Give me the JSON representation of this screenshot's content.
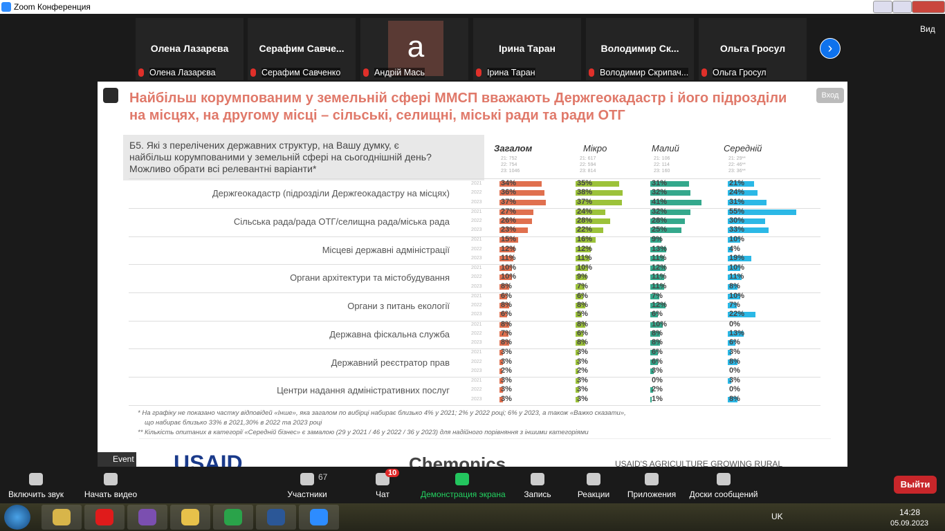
{
  "window": {
    "title": "Zoom Конференция"
  },
  "view_button": "Вид",
  "participants": [
    {
      "name": "Олена Лазарєва",
      "label": "Олена Лазарєва"
    },
    {
      "name": "Серафим  Савче...",
      "label": "Серафим Савченко"
    },
    {
      "avatar": "а",
      "label": "Андрій Мась"
    },
    {
      "name": "Ірина Таран",
      "label": "Ірина Таран"
    },
    {
      "name": "Володимир  Ск...",
      "label": "Володимир Скрипач..."
    },
    {
      "name": "Ольга Гросул",
      "label": "Ольга Гросул"
    }
  ],
  "slide": {
    "title": [
      "Найбільш корумпованим у земельній сфері ММСП вважають Держгеокадастр і його підрозділи",
      "на місцях, на другому місці – сільські, селищні, міські ради та ради ОТГ"
    ],
    "question": [
      "Б5. Які з перелічених державних структур, на Вашу думку, є",
      "найбільш корумпованими у земельній сфері на сьогоднішній день?",
      "Можливо обрати всі релевантні варіанти*"
    ],
    "groups": [
      {
        "name": "Загалом",
        "color": "#e0704f",
        "sizes": [
          "21: 752",
          "22: 754",
          "23: 1046"
        ]
      },
      {
        "name": "Мікро",
        "color": "#9cc23a",
        "sizes": [
          "21: 617",
          "22: 594",
          "23: 814"
        ]
      },
      {
        "name": "Малий",
        "color": "#34a88c",
        "sizes": [
          "21: 106",
          "22: 114",
          "23: 160"
        ]
      },
      {
        "name": "Середній",
        "color": "#2bb8e6",
        "sizes": [
          "21: 29**",
          "22: 46**",
          "23: 36**"
        ]
      }
    ],
    "years": [
      "2021",
      "2022",
      "2023"
    ],
    "rows": [
      {
        "label": "Держгеокадастр (підрозділи Держгеокадастру на місцях)",
        "values": [
          [
            34,
            35,
            31,
            21
          ],
          [
            36,
            38,
            32,
            24
          ],
          [
            37,
            37,
            41,
            31
          ]
        ],
        "value_labels": [
          [
            "34%",
            "35%",
            "31%",
            "21%"
          ],
          [
            "36%",
            "38%",
            "32%",
            "24%"
          ],
          [
            "37%",
            "37%",
            "41%",
            "31%"
          ]
        ]
      },
      {
        "label": "Сільська рада/рада ОТГ/селищна рада/міська рада",
        "values": [
          [
            27,
            24,
            32,
            55
          ],
          [
            26,
            28,
            28,
            30
          ],
          [
            23,
            22,
            25,
            33
          ]
        ],
        "value_labels": [
          [
            "27%",
            "24%",
            "32%",
            "55%"
          ],
          [
            "26%",
            "28%",
            "28%",
            "30%"
          ],
          [
            "23%",
            "22%",
            "25%",
            "33%"
          ]
        ]
      },
      {
        "label": "Місцеві державні адміністрації",
        "values": [
          [
            15,
            16,
            9,
            10
          ],
          [
            12,
            12,
            13,
            4
          ],
          [
            11,
            11,
            11,
            19
          ]
        ],
        "value_labels": [
          [
            "15%",
            "16%",
            "9%",
            "10%"
          ],
          [
            "12%",
            "12%",
            "13%",
            "4%"
          ],
          [
            "11%",
            "11%",
            "11%",
            "19%"
          ]
        ]
      },
      {
        "label": "Органи архітектури та містобудування",
        "values": [
          [
            10,
            10,
            12,
            10
          ],
          [
            10,
            9,
            11,
            11
          ],
          [
            8,
            7,
            11,
            8
          ]
        ],
        "value_labels": [
          [
            "10%",
            "10%",
            "12%",
            "10%"
          ],
          [
            "10%",
            "9%",
            "11%",
            "11%"
          ],
          [
            "8%",
            "7%",
            "11%",
            "8%"
          ]
        ]
      },
      {
        "label": "Органи з питань екології",
        "values": [
          [
            6,
            6,
            7,
            10
          ],
          [
            8,
            8,
            12,
            7
          ],
          [
            6,
            5,
            6,
            22
          ]
        ],
        "value_labels": [
          [
            "6%",
            "6%",
            "7%",
            "10%"
          ],
          [
            "8%",
            "8%",
            "12%",
            "7%"
          ],
          [
            "6%",
            "5%",
            "6%",
            "22%"
          ]
        ]
      },
      {
        "label": "Державна фіскальна служба",
        "values": [
          [
            8,
            8,
            10,
            0
          ],
          [
            7,
            6,
            8,
            13
          ],
          [
            8,
            8,
            8,
            6
          ]
        ],
        "value_labels": [
          [
            "8%",
            "8%",
            "10%",
            "0%"
          ],
          [
            "7%",
            "6%",
            "8%",
            "13%"
          ],
          [
            "8%",
            "8%",
            "8%",
            "6%"
          ]
        ]
      },
      {
        "label": "Державний реєстратор прав",
        "values": [
          [
            3,
            3,
            6,
            3
          ],
          [
            3,
            3,
            6,
            8
          ],
          [
            2,
            2,
            3,
            0
          ]
        ],
        "value_labels": [
          [
            "3%",
            "3%",
            "6%",
            "3%"
          ],
          [
            "3%",
            "3%",
            "6%",
            "8%"
          ],
          [
            "2%",
            "2%",
            "3%",
            "0%"
          ]
        ]
      },
      {
        "label": "Центри надання адміністративних послуг",
        "values": [
          [
            3,
            3,
            0,
            3
          ],
          [
            3,
            3,
            2,
            0
          ],
          [
            3,
            3,
            1,
            8
          ]
        ],
        "value_labels": [
          [
            "3%",
            "3%",
            "0%",
            "3%"
          ],
          [
            "3%",
            "3%",
            "2%",
            "0%"
          ],
          [
            "3%",
            "3%",
            "1%",
            "8%"
          ]
        ]
      }
    ],
    "footnotes": [
      "* На графіку не показано частку відповідей «Інше», яка загалом по вибірці набирає близько 4% у 2021; 2% у 2022 році; 6% у 2023, а також «Важко сказати»,",
      "що набирає близько 33% в 2021,30% в 2022 та 2023 році",
      "** Кількість опитаних в категорії «Середній бізнес» є замалою (29 у 2021 / 46 у 2022 / 36 у 2023) для надійного порівняння з іншими категоріями"
    ],
    "logos": [
      "USAID",
      "Chemonics",
      "USAID'S AGRICULTURE GROWING RURAL"
    ],
    "event_badge": "Event",
    "enter_button": "Вход"
  },
  "toolbar": [
    {
      "label": "Включить звук"
    },
    {
      "label": "Начать видео"
    },
    {
      "label": "Участники",
      "count": "67"
    },
    {
      "label": "Чат",
      "badge": "10"
    },
    {
      "label": "Демонстрация экрана"
    },
    {
      "label": "Запись"
    },
    {
      "label": "Реакции"
    },
    {
      "label": "Приложения"
    },
    {
      "label": "Доски сообщений"
    }
  ],
  "exit_button": "Выйти",
  "taskbar": {
    "language": "UK",
    "time": "14:28",
    "date": "05.09.2023"
  }
}
